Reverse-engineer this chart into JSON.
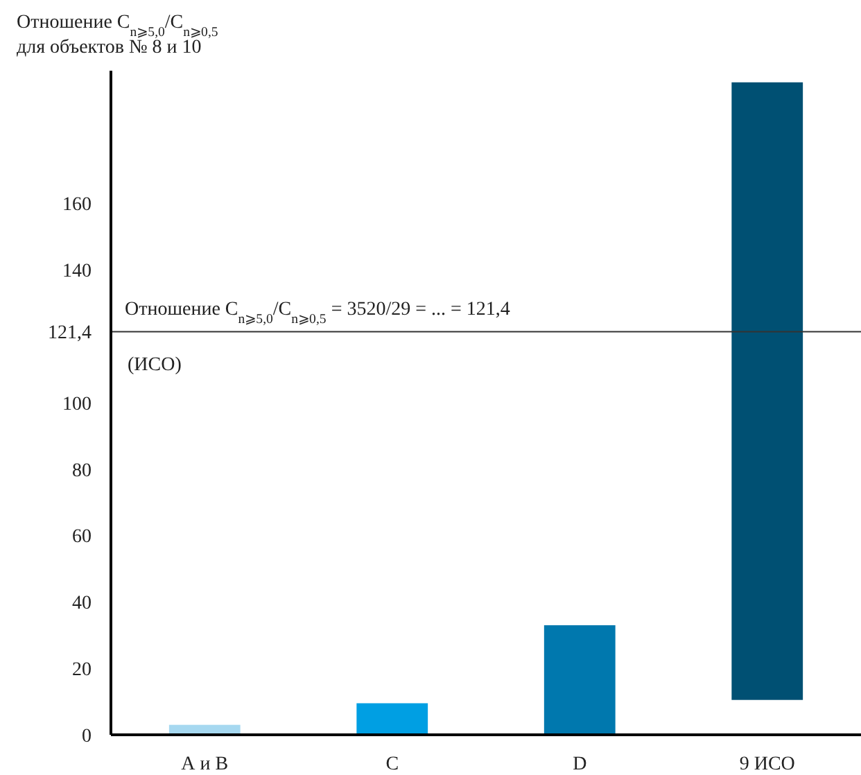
{
  "chart_data": {
    "type": "bar",
    "ylabel": "Отношение C$_{n⩾5,0}$/C$_{n⩾0,5}$\nдля объектов № 8 и 10",
    "categories": [
      "А и В",
      "С",
      "D",
      "9 ИСО"
    ],
    "values": [
      3,
      9.5,
      33,
      186
    ],
    "base": [
      0,
      0,
      0,
      10.5
    ],
    "colors": [
      "#a6d8f0",
      "#009fe3",
      "#0078ae",
      "#005073"
    ],
    "ylim": [
      0,
      200
    ],
    "yticks": [
      0,
      20,
      40,
      60,
      80,
      100,
      {
        "value": 121.4,
        "label": "121,4"
      },
      140,
      160
    ],
    "ref_lines": [
      {
        "axis": "y",
        "value": 121.4,
        "label": "Отношение C$_{n⩾5,0}$/C$_{n⩾0,5}$ = 3520/29 = ... = 121,4",
        "color": "#333333"
      }
    ],
    "annotations": [
      "(ИСО)"
    ],
    "grid": false
  }
}
